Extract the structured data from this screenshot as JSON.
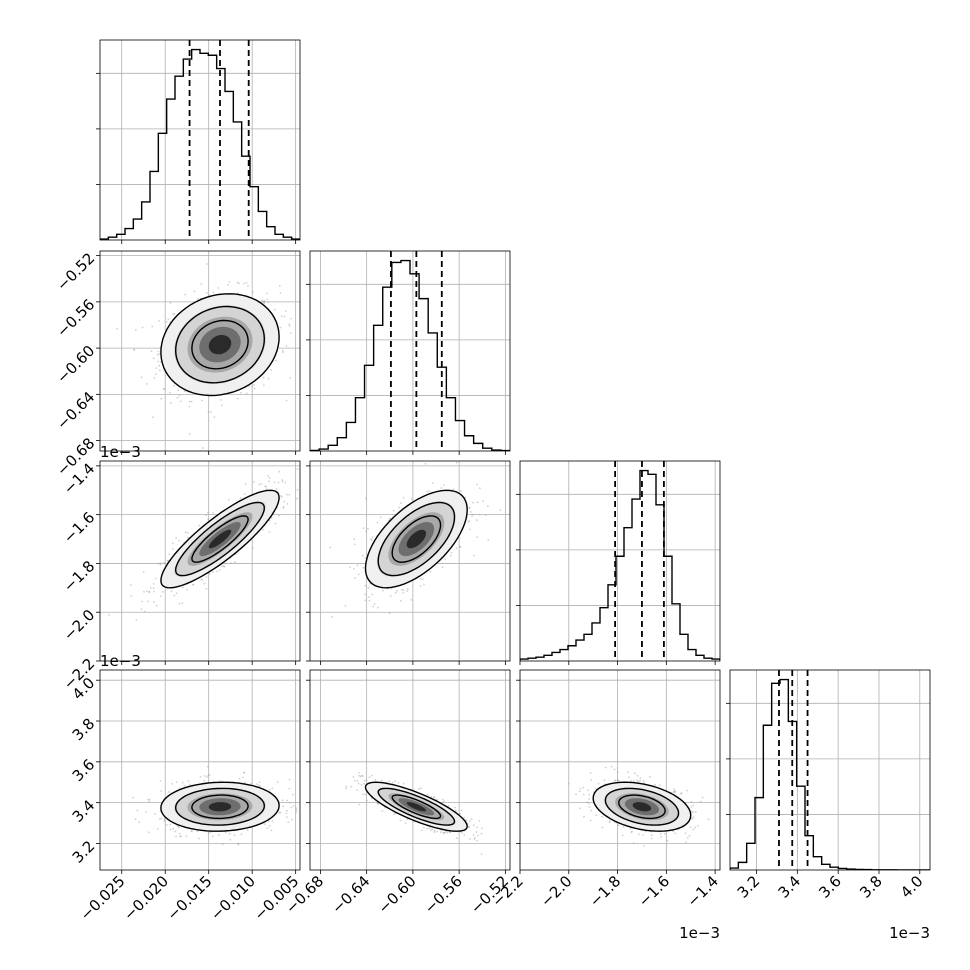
{
  "chart_data": {
    "type": "corner",
    "grid": true,
    "parameters": [
      {
        "range": [
          -0.0275,
          -0.0045
        ],
        "ticks": [
          -0.025,
          -0.02,
          -0.015,
          -0.01,
          -0.005
        ],
        "tick_labels": [
          "−0.025",
          "−0.020",
          "−0.015",
          "−0.010",
          "−0.005"
        ],
        "offset_label": "",
        "quantiles": [
          -0.0172,
          -0.0137,
          -0.0104
        ],
        "hist": [
          0.5,
          1.5,
          3,
          6,
          11,
          20,
          36,
          56,
          74,
          86,
          95,
          100,
          98,
          97,
          90,
          78,
          62,
          44,
          28,
          15,
          7,
          3,
          1.5,
          0.5
        ],
        "mean": -0.0137,
        "sd": 0.0034
      },
      {
        "range": [
          -0.689,
          -0.516
        ],
        "ticks": [
          -0.68,
          -0.64,
          -0.6,
          -0.56,
          -0.52
        ],
        "tick_labels": [
          "−0.68",
          "−0.64",
          "−0.60",
          "−0.56",
          "−0.52"
        ],
        "offset_label": "",
        "quantiles": [
          -0.619,
          -0.597,
          -0.575
        ],
        "hist": [
          0.3,
          1,
          3,
          7,
          15,
          28,
          45,
          66,
          86,
          99,
          100,
          93,
          80,
          62,
          44,
          28,
          16,
          8,
          4,
          1.5,
          0.5,
          0.2
        ],
        "mean": -0.597,
        "sd": 0.022
      },
      {
        "range": [
          -2.2,
          -1.38
        ],
        "ticks": [
          -2.2,
          -2.0,
          -1.8,
          -1.6,
          -1.4
        ],
        "tick_labels": [
          "−2.2",
          "−2.0",
          "−1.8",
          "−1.6",
          "−1.4"
        ],
        "offset_label": "1e−3",
        "quantiles": [
          -1.81,
          -1.7,
          -1.61
        ],
        "hist": [
          1,
          1.5,
          2,
          3,
          4.5,
          6,
          8,
          11,
          14,
          20,
          28,
          40,
          55,
          70,
          85,
          100,
          98,
          82,
          55,
          30,
          14,
          6,
          3,
          1.5,
          1
        ],
        "mean": -1.7,
        "sd": 0.1
      },
      {
        "range": [
          3.07,
          4.05
        ],
        "ticks": [
          3.2,
          3.4,
          3.6,
          3.8,
          4.0
        ],
        "tick_labels": [
          "3.2",
          "3.4",
          "3.6",
          "3.8",
          "4.0"
        ],
        "offset_label": "1e−3",
        "quantiles": [
          3.31,
          3.375,
          3.45
        ],
        "hist": [
          1,
          4,
          14,
          38,
          76,
          98,
          100,
          78,
          44,
          18,
          7,
          3,
          1.5,
          0.8,
          0.5,
          0.3,
          0.2,
          0.1,
          0.1,
          0.1,
          0,
          0,
          0,
          0
        ],
        "mean": 3.38,
        "sd": 0.06
      }
    ],
    "correlations": [
      [
        1,
        0.15,
        0.85,
        0.05
      ],
      [
        0.15,
        1,
        0.6,
        -0.8
      ],
      [
        0.85,
        0.6,
        1,
        -0.35
      ],
      [
        0.05,
        -0.8,
        -0.35,
        1
      ]
    ],
    "y_offset_labels": [
      "",
      "",
      "1e−3",
      "1e−3"
    ]
  }
}
